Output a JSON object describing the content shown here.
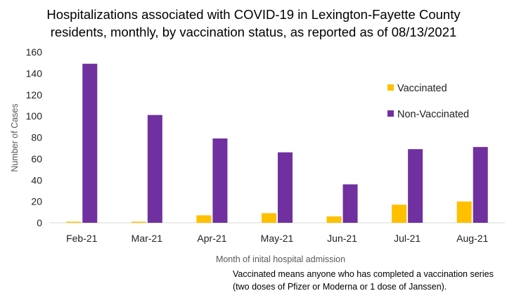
{
  "chart_data": {
    "type": "bar",
    "title": [
      "Hospitalizations associated with COVID-19 in Lexington-Fayette County",
      "residents, monthly, by vaccination status, as reported as of  08/13/2021"
    ],
    "xlabel": "Month of inital hospital admission",
    "ylabel": "Number of Cases",
    "ylim": [
      0,
      160
    ],
    "yticks": [
      "0",
      "20",
      "40",
      "60",
      "80",
      "100",
      "120",
      "140",
      "160"
    ],
    "categories": [
      "Feb-21",
      "Mar-21",
      "Apr-21",
      "May-21",
      "Jun-21",
      "Jul-21",
      "Aug-21"
    ],
    "series": [
      {
        "name": "Vaccinated",
        "color": "#FFC000",
        "values": [
          1,
          1,
          7,
          9,
          6,
          17,
          20
        ]
      },
      {
        "name": "Non-Vaccinated",
        "color": "#7030A0",
        "values": [
          149,
          101,
          79,
          66,
          36,
          69,
          71
        ]
      }
    ],
    "grid": false,
    "legend_position": "right",
    "note": [
      "Vaccinated means anyone who has completed a vaccination series",
      "(two doses of Pfizer or Moderna or 1 dose of Janssen)."
    ]
  }
}
